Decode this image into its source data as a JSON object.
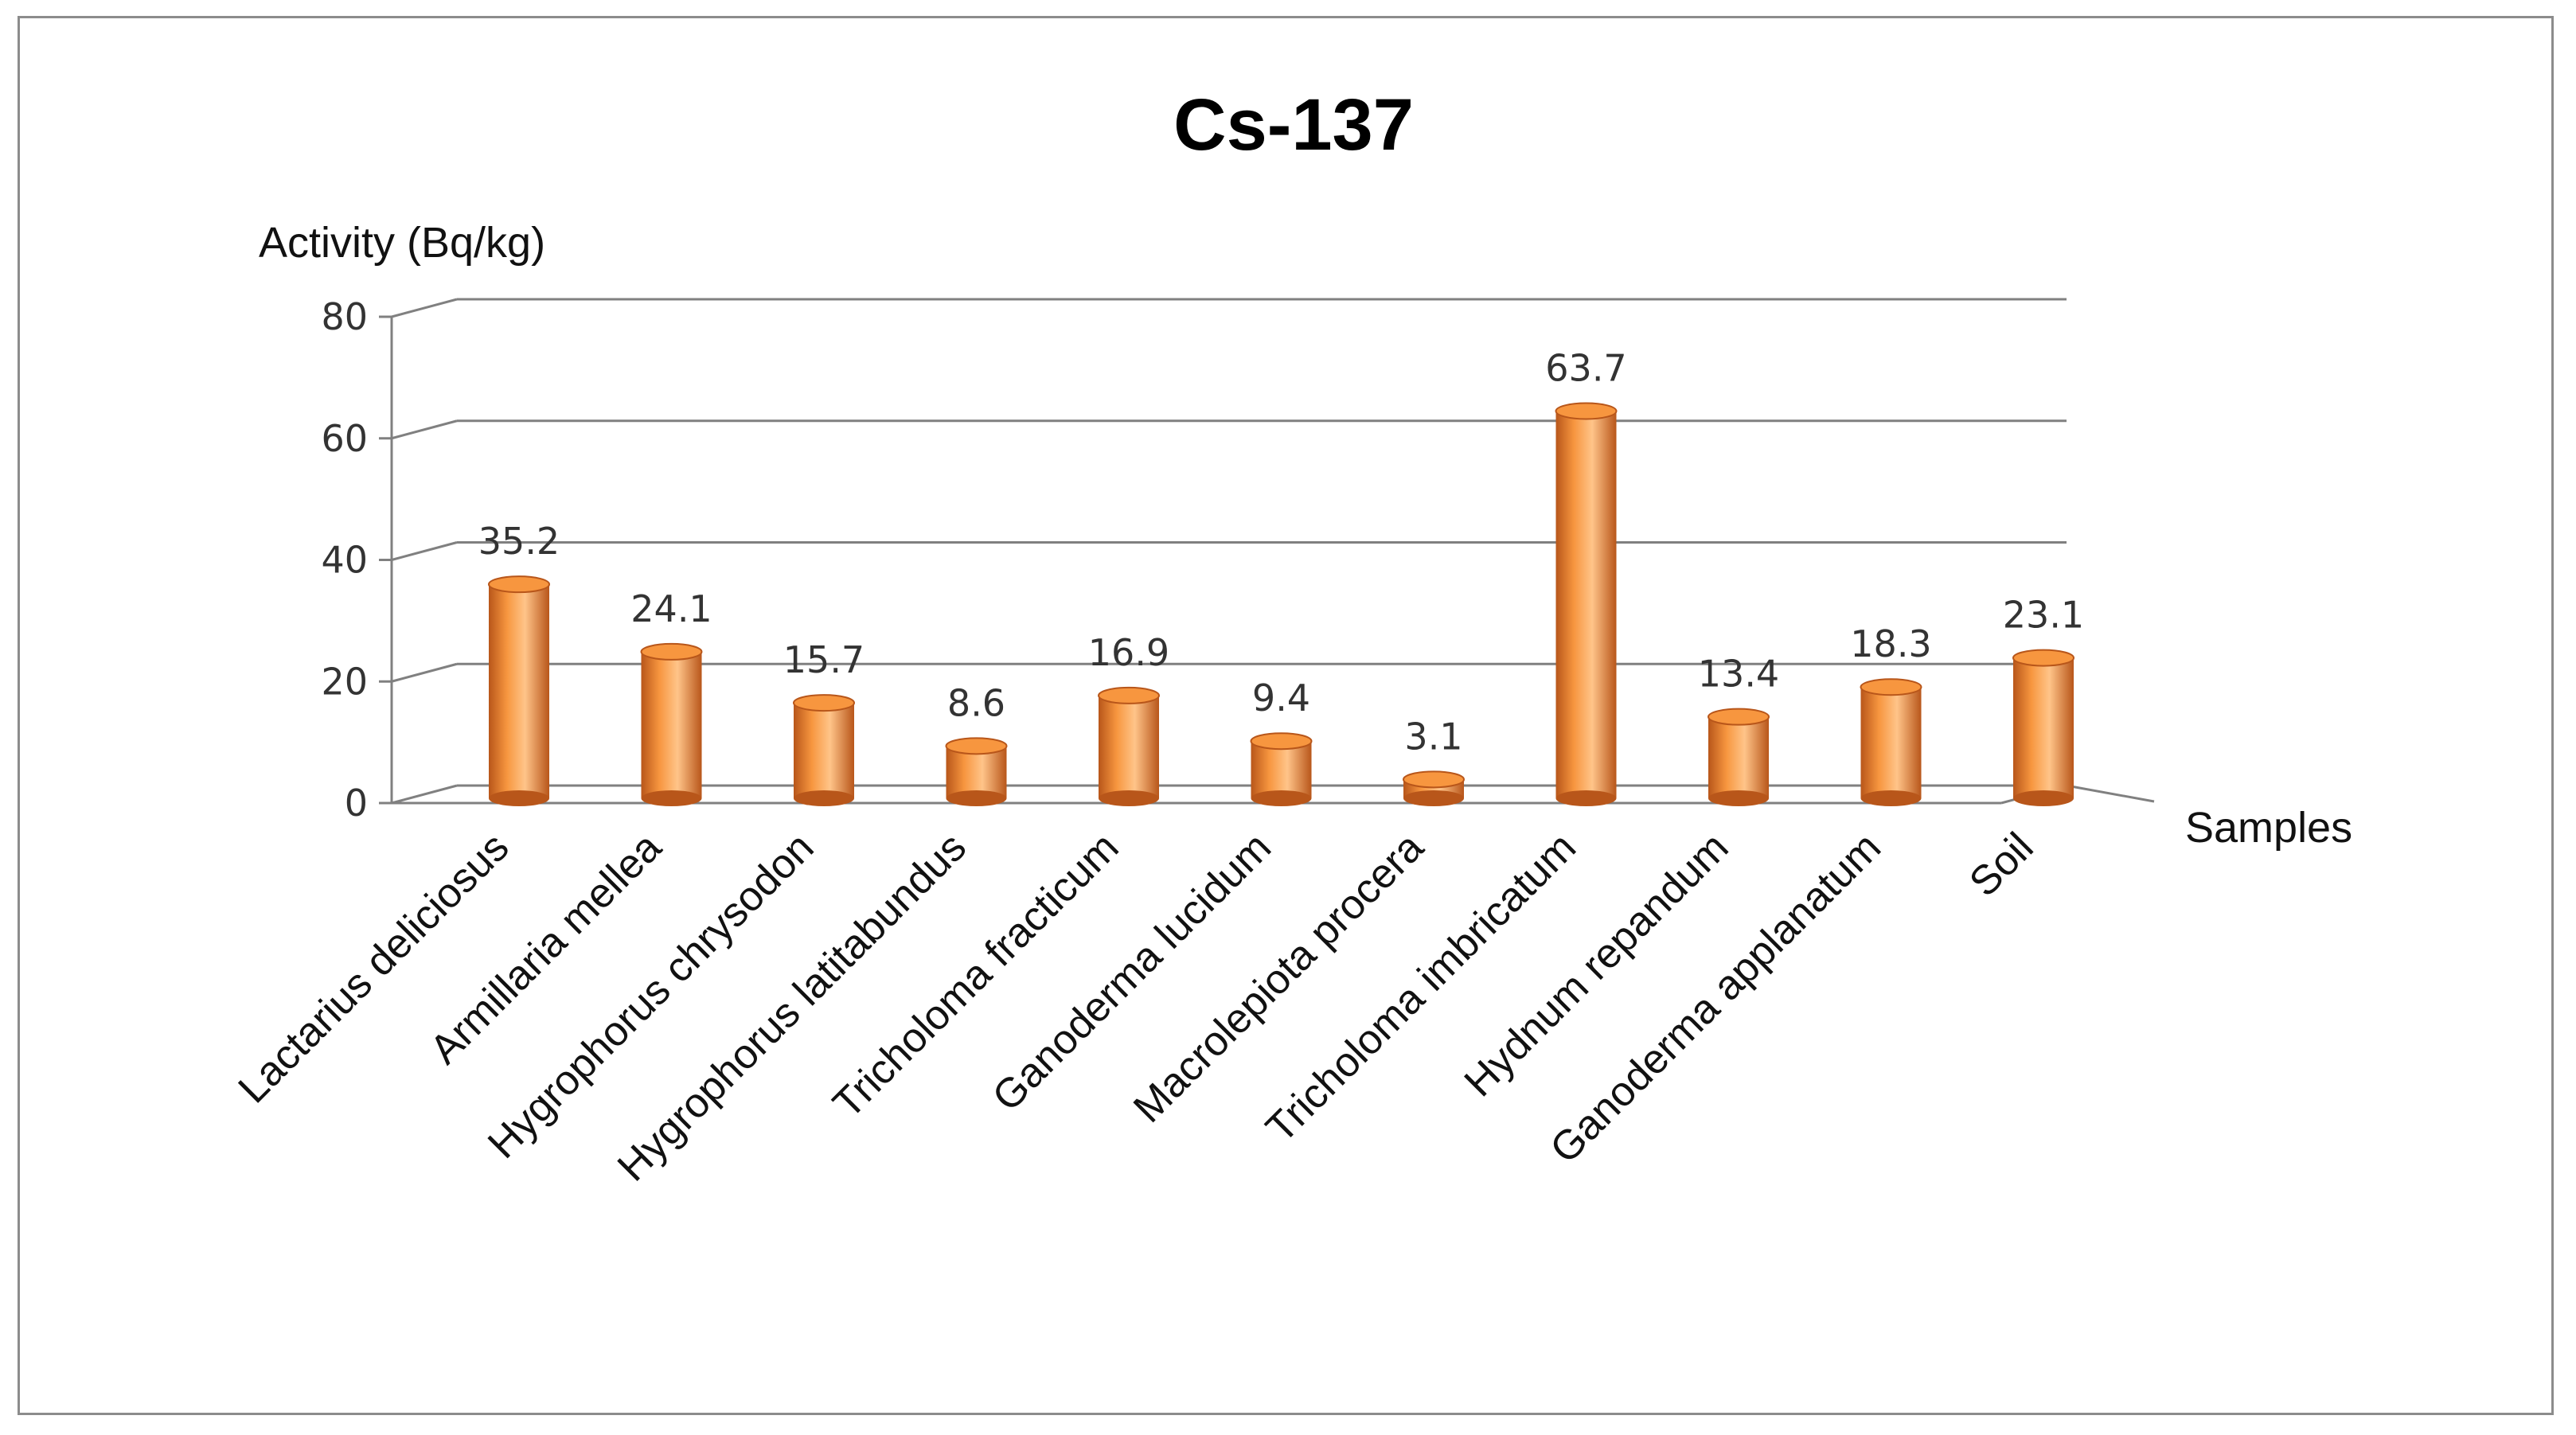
{
  "chart_data": {
    "type": "bar",
    "title": "Cs-137",
    "ylabel": "Activity (Bq/kg)",
    "xlabel": "Samples",
    "ylim": [
      0,
      80
    ],
    "yticks": [
      0,
      20,
      40,
      60,
      80
    ],
    "categories": [
      "Lactarius deliciosus",
      "Armillaria mellea",
      "Hygrophorus chrysodon",
      "Hygrophorus latitabundus",
      "Tricholoma fracticum",
      "Ganoderma lucidum",
      "Macrolepiota procera",
      "Tricholoma imbricatum",
      "Hydnum repandum",
      "Ganoderma applanatum",
      "Soil"
    ],
    "values": [
      35.2,
      24.1,
      15.7,
      8.6,
      16.9,
      9.4,
      3.1,
      63.7,
      13.4,
      18.3,
      23.1
    ],
    "data_labels": [
      "35.2",
      "24.1",
      "15.7",
      "8.6",
      "16.9",
      "9.4",
      "3.1",
      "63.7",
      "13.4",
      "18.3",
      "23.1"
    ],
    "grid": true,
    "style": "3d-cylinder",
    "colors": {
      "bar": "#f7963f",
      "bar_dark": "#b8561a",
      "bar_light": "#ffc489",
      "grid": "#808080"
    }
  }
}
